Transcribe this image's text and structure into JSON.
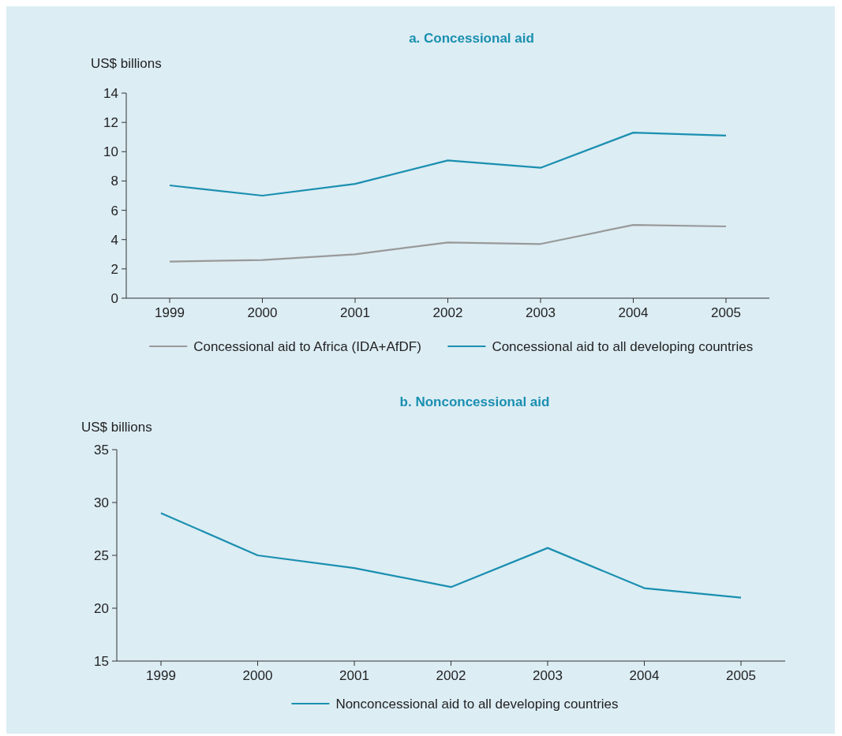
{
  "chart_data": [
    {
      "type": "line",
      "title": "a. Concessional aid",
      "ylabel": "US$ billions",
      "categories": [
        "1999",
        "2000",
        "2001",
        "2002",
        "2003",
        "2004",
        "2005"
      ],
      "series": [
        {
          "name": "Concessional aid to Africa (IDA+AfDF)",
          "color": "#999999",
          "values": [
            2.5,
            2.6,
            3.0,
            3.8,
            3.7,
            5.0,
            4.9
          ]
        },
        {
          "name": "Concessional aid to all developing countries",
          "color": "#1a8fb0",
          "values": [
            7.7,
            7.0,
            7.8,
            9.4,
            8.9,
            11.3,
            11.1
          ]
        }
      ],
      "ylim": [
        0,
        14
      ],
      "yticks": [
        0,
        2,
        4,
        6,
        8,
        10,
        12,
        14
      ],
      "legend": "bottom"
    },
    {
      "type": "line",
      "title": "b. Nonconcessional aid",
      "ylabel": "US$ billions",
      "categories": [
        "1999",
        "2000",
        "2001",
        "2002",
        "2003",
        "2004",
        "2005"
      ],
      "series": [
        {
          "name": "Nonconcessional aid to all developing countries",
          "color": "#1a8fb0",
          "values": [
            29.0,
            25.0,
            23.8,
            22.0,
            25.7,
            21.9,
            21.0
          ]
        }
      ],
      "ylim": [
        15,
        35
      ],
      "yticks": [
        15,
        20,
        25,
        30,
        35
      ],
      "legend": "bottom"
    }
  ]
}
